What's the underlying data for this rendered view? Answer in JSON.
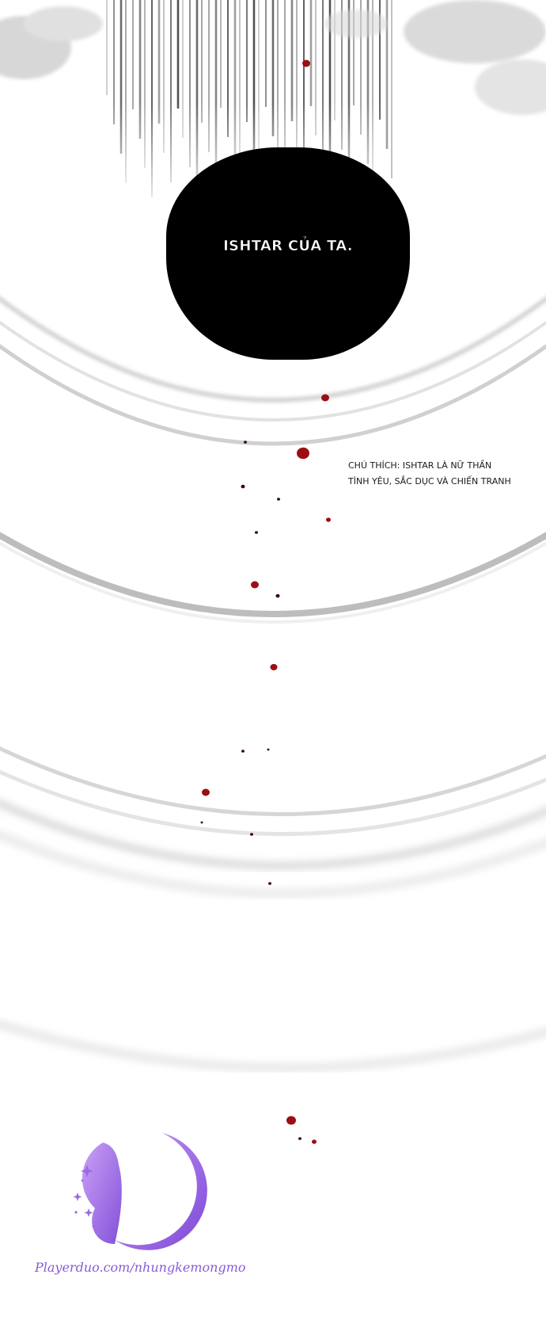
{
  "speech_bubble": {
    "text": "ISHTAR CỦA TA."
  },
  "translator_note": {
    "line1": "CHÚ THÍCH: ISHTAR LÀ NỮ THẦN",
    "line2": "TÌNH YÊU, SẮC DỤC VÀ CHIẾN TRANH"
  },
  "watermark": {
    "text": "Playerduo.com/nhungkemongmo"
  },
  "colors": {
    "background": "#ffffff",
    "bubble": "#000000",
    "blood_drop": "#9b0f12",
    "logo_purple": "#9b6be3"
  },
  "icons": {
    "logo": "butterfly-moon-logo-icon"
  }
}
